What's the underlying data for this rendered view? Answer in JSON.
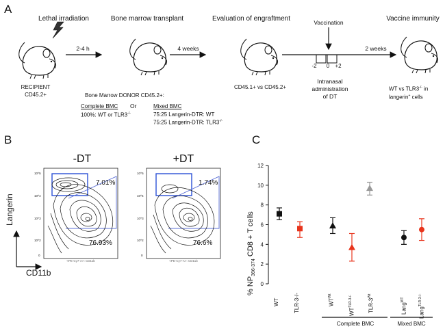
{
  "panel_a": {
    "letter": "A",
    "step_lethal": "Lethal irradiation",
    "step_transplant": "Bone marrow transplant",
    "step_evaluation": "Evaluation of engraftment",
    "step_vaccination": "Vaccination",
    "step_vaccine_immunity": "Vaccine immunity",
    "time_1": "2-4 h",
    "time_2": "4 weeks",
    "time_3": "2 weeks",
    "recipient_line1": "RECIPIENT",
    "recipient_line2": "CD45.2+",
    "donor_title": "Bone Marrow DONOR CD45.2+:",
    "complete_bmc_head": "Complete BMC",
    "or": "Or",
    "complete_bmc_detail_pre": "100%: WT or TLR3",
    "ko_sup": "-/-",
    "mixed_bmc_head": "Mixed BMC",
    "mixed_line1": "75:25 Langerin-DTR: WT",
    "mixed_line2_pre": "75:25 Langerin-DTR: TLR3",
    "eval_label": "CD45.1+ vs CD45.2+",
    "tick_m2": "-2",
    "tick_0": "0",
    "tick_p2": "+2",
    "intranasal_1": "Intranasal",
    "intranasal_2": "administration",
    "intranasal_3": "of DT",
    "wt_vs_pre": "WT vs TLR3",
    "wt_vs_post": " in",
    "langerin_pre": "langerin",
    "langerin_sup": "+",
    "langerin_post": " cells"
  },
  "panel_b": {
    "letter": "B",
    "left_title": "-DT",
    "right_title": "+DT",
    "y_axis": "Langerin",
    "x_axis": "CD11b",
    "left_gate_pct": "7.01%",
    "left_main_pct": "76.93%",
    "right_gate_pct": "1.74%",
    "right_main_pct": "76.6%",
    "tick_labels": [
      "10^5",
      "10^4",
      "10^3",
      "10^2",
      "0"
    ],
    "small_axis": "<PE-Cy7-A>: CD11b"
  },
  "panel_c": {
    "letter": "C",
    "ylabel_pre": "% NP",
    "ylabel_sub": "366-374",
    "ylabel_post": " CD8 + T cells",
    "group_complete": "Complete BMC",
    "group_mixed": "Mixed BMC",
    "cat_wt": "WT",
    "cat_tlr": "TLR-3-/-",
    "cat_wtwt_base": "WT",
    "cat_wtwt_sup": "Wt",
    "cat_wttlr_base": "WT",
    "cat_wttlr_sup": "TLR-3-/-",
    "cat_tlrwt_base": "TLR-3",
    "cat_tlrwt_sup": "Wt",
    "cat_langwt_base": "Lang",
    "cat_langwt_sup": "WT",
    "cat_langtlr_base": "Lang",
    "cat_langtlr_sup": "TLR-3-/-"
  },
  "chart_data": {
    "type": "scatter",
    "title": "",
    "xlabel": "",
    "ylabel": "% NP366-374 CD8 + T cells",
    "ylim": [
      0,
      12
    ],
    "yticks": [
      0,
      2,
      4,
      6,
      8,
      10,
      12
    ],
    "categories": [
      "WT",
      "TLR-3-/-",
      "WT^Wt",
      "WT^TLR-3-/-",
      "TLR-3^Wt",
      "Lang^WT",
      "Lang^TLR-3-/-"
    ],
    "series": [
      {
        "name": "WT",
        "marker": "square",
        "color": "#111111",
        "value": 7.1,
        "err_low": 6.5,
        "err_high": 7.7
      },
      {
        "name": "TLR-3-/-",
        "marker": "square",
        "color": "#e8341c",
        "value": 5.6,
        "err_low": 4.7,
        "err_high": 6.3
      },
      {
        "name": "WT^Wt",
        "marker": "triangle",
        "color": "#111111",
        "value": 5.9,
        "err_low": 5.1,
        "err_high": 6.7
      },
      {
        "name": "WT^TLR-3-/-",
        "marker": "triangle",
        "color": "#e8341c",
        "value": 3.7,
        "err_low": 2.3,
        "err_high": 5.1
      },
      {
        "name": "TLR-3^Wt",
        "marker": "triangle",
        "color": "#999999",
        "value": 9.7,
        "err_low": 9.0,
        "err_high": 10.3
      },
      {
        "name": "Lang^WT",
        "marker": "circle",
        "color": "#111111",
        "value": 4.7,
        "err_low": 4.0,
        "err_high": 5.4
      },
      {
        "name": "Lang^TLR-3-/-",
        "marker": "circle",
        "color": "#e8341c",
        "value": 5.5,
        "err_low": 4.4,
        "err_high": 6.6
      }
    ]
  }
}
